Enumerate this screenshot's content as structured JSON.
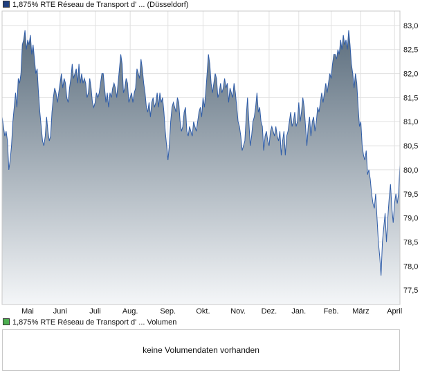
{
  "price_legend": {
    "label": "1,875% RTE Réseau de Transport d' ... (Düsseldorf)",
    "swatch_color": "#1f3f7f"
  },
  "volume_legend": {
    "label": "1,875% RTE Réseau de Transport d' ... Volumen",
    "swatch_color": "#4caf50"
  },
  "volume_panel": {
    "message": "keine Volumendaten vorhanden"
  },
  "colors": {
    "line": "#2e5ca8",
    "fill_top": "#5c6e7e",
    "fill_bottom": "#f4f6f8",
    "grid": "#e0e0e0",
    "frame": "#c8c8c8"
  },
  "chart_data": {
    "type": "area",
    "ylim": [
      77.2,
      83.3
    ],
    "yticks": [
      "77,5",
      "78,0",
      "78,5",
      "79,0",
      "79,5",
      "80,0",
      "80,5",
      "81,0",
      "81,5",
      "82,0",
      "82,5",
      "83,0"
    ],
    "ytick_values": [
      77.5,
      78.0,
      78.5,
      79.0,
      79.5,
      80.0,
      80.5,
      81.0,
      81.5,
      82.0,
      82.5,
      83.0
    ],
    "xticks": [
      "Mai",
      "Juni",
      "Juli",
      "Aug.",
      "Sep.",
      "Okt.",
      "Nov.",
      "Dez.",
      "Jan.",
      "Feb.",
      "März",
      "April"
    ],
    "xtick_index": [
      19,
      43,
      69,
      95,
      123,
      149,
      175,
      198,
      220,
      244,
      266,
      291
    ],
    "series": [
      {
        "values": [
          81.1,
          80.9,
          80.7,
          80.8,
          80.6,
          80.0,
          80.2,
          80.5,
          81.0,
          81.3,
          81.6,
          81.3,
          81.9,
          81.8,
          82.0,
          82.6,
          82.7,
          82.9,
          82.5,
          82.7,
          82.6,
          82.8,
          82.4,
          82.6,
          82.3,
          82.0,
          82.1,
          81.6,
          81.2,
          80.9,
          80.6,
          80.5,
          80.7,
          81.1,
          80.8,
          80.6,
          80.7,
          81.2,
          81.5,
          81.7,
          81.6,
          81.4,
          81.6,
          81.8,
          82.0,
          81.7,
          81.9,
          81.8,
          81.5,
          81.4,
          81.7,
          81.9,
          82.2,
          81.9,
          82.0,
          82.1,
          81.8,
          82.2,
          81.8,
          82.0,
          81.8,
          81.9,
          81.8,
          81.5,
          81.6,
          81.9,
          81.7,
          81.4,
          81.3,
          81.4,
          81.6,
          81.5,
          81.6,
          81.8,
          82.0,
          82.0,
          81.7,
          81.4,
          81.6,
          81.3,
          81.6,
          81.5,
          81.7,
          81.8,
          81.7,
          81.5,
          81.8,
          82.1,
          82.4,
          82.2,
          81.6,
          81.7,
          81.9,
          81.8,
          81.4,
          81.5,
          81.6,
          81.4,
          81.6,
          81.7,
          82.1,
          82.0,
          81.9,
          82.3,
          82.1,
          81.8,
          81.6,
          81.3,
          81.2,
          81.4,
          81.1,
          81.4,
          81.5,
          81.3,
          81.4,
          81.6,
          81.3,
          81.6,
          81.4,
          81.5,
          81.2,
          80.8,
          80.5,
          80.2,
          80.5,
          81.0,
          81.3,
          81.4,
          81.3,
          81.2,
          81.5,
          81.4,
          81.0,
          80.8,
          80.9,
          81.2,
          81.3,
          80.8,
          80.7,
          80.9,
          80.8,
          80.7,
          81.0,
          80.9,
          80.8,
          81.0,
          81.2,
          81.3,
          81.1,
          81.5,
          81.3,
          81.6,
          82.0,
          82.4,
          82.2,
          81.8,
          81.6,
          81.8,
          82.0,
          81.9,
          81.5,
          81.6,
          81.8,
          81.6,
          81.7,
          81.9,
          81.7,
          81.8,
          81.4,
          81.7,
          81.6,
          81.5,
          81.8,
          81.6,
          81.3,
          81.0,
          80.9,
          80.7,
          80.4,
          80.5,
          80.6,
          81.1,
          81.5,
          81.0,
          80.5,
          80.7,
          81.0,
          81.1,
          81.3,
          81.6,
          81.2,
          81.3,
          81.0,
          80.9,
          80.4,
          80.7,
          80.8,
          80.6,
          80.5,
          80.8,
          80.9,
          80.8,
          80.7,
          80.9,
          80.7,
          80.6,
          80.8,
          80.3,
          80.6,
          80.8,
          80.3,
          80.7,
          80.8,
          81.0,
          81.2,
          80.9,
          81.0,
          81.2,
          80.9,
          81.0,
          81.4,
          81.0,
          81.2,
          81.5,
          81.3,
          80.9,
          80.5,
          80.9,
          81.1,
          80.7,
          81.0,
          81.1,
          80.8,
          81.0,
          81.3,
          81.2,
          81.4,
          81.6,
          81.4,
          81.6,
          81.8,
          81.6,
          81.8,
          82.0,
          81.9,
          82.2,
          82.4,
          82.4,
          82.3,
          82.5,
          82.4,
          82.7,
          82.5,
          82.8,
          82.6,
          82.7,
          82.5,
          82.9,
          82.6,
          82.2,
          82.0,
          81.7,
          82.0,
          81.8,
          81.3,
          80.9,
          81.0,
          80.5,
          80.3,
          80.2,
          80.4,
          79.9,
          80.0,
          79.8,
          79.5,
          79.3,
          79.2,
          79.5,
          79.0,
          78.5,
          78.2,
          77.8,
          78.5,
          78.8,
          79.1,
          78.5,
          79.0,
          79.4,
          79.7,
          79.2,
          78.9,
          79.3,
          79.5,
          79.3,
          79.5,
          80.1
        ]
      }
    ]
  }
}
